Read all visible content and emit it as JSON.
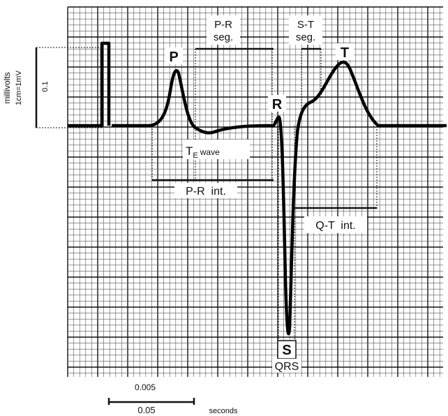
{
  "diagram": {
    "waves": {
      "p": "P",
      "r": "R",
      "t": "T",
      "s": "S",
      "qrs": "QRS"
    },
    "segments": {
      "pr_seg_1": "P-R",
      "pr_seg_2": "seg.",
      "st_seg_1": "S-T",
      "st_seg_2": "seg."
    },
    "ta_wave": {
      "main": "T",
      "sub": "E",
      "suffix": "wave"
    },
    "intervals": {
      "pr_int": "P-R  int.",
      "qt_int": "Q-T  int."
    },
    "voltage_scale": {
      "unit": "millivolts",
      "ratio": "1cm=1mV",
      "value": "0.1"
    },
    "time_scale": {
      "small": "0.005",
      "large": "0.05",
      "unit": "seconds"
    }
  }
}
